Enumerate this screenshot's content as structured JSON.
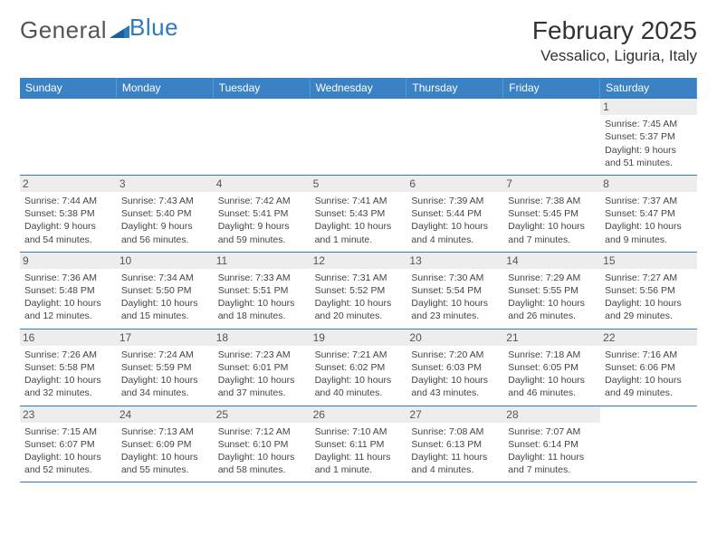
{
  "logo": {
    "part1": "General",
    "part2": "Blue"
  },
  "title": "February 2025",
  "location": "Vessalico, Liguria, Italy",
  "colors": {
    "header_bg": "#3b82c4",
    "header_text": "#ffffff",
    "border": "#2b7bbf",
    "daynum_bg": "#ededed",
    "text": "#444444",
    "logo_gray": "#555555",
    "logo_blue": "#2b7bbf"
  },
  "dow": [
    "Sunday",
    "Monday",
    "Tuesday",
    "Wednesday",
    "Thursday",
    "Friday",
    "Saturday"
  ],
  "weeks": [
    [
      null,
      null,
      null,
      null,
      null,
      null,
      {
        "n": "1",
        "sr": "Sunrise: 7:45 AM",
        "ss": "Sunset: 5:37 PM",
        "d1": "Daylight: 9 hours",
        "d2": "and 51 minutes."
      }
    ],
    [
      {
        "n": "2",
        "sr": "Sunrise: 7:44 AM",
        "ss": "Sunset: 5:38 PM",
        "d1": "Daylight: 9 hours",
        "d2": "and 54 minutes."
      },
      {
        "n": "3",
        "sr": "Sunrise: 7:43 AM",
        "ss": "Sunset: 5:40 PM",
        "d1": "Daylight: 9 hours",
        "d2": "and 56 minutes."
      },
      {
        "n": "4",
        "sr": "Sunrise: 7:42 AM",
        "ss": "Sunset: 5:41 PM",
        "d1": "Daylight: 9 hours",
        "d2": "and 59 minutes."
      },
      {
        "n": "5",
        "sr": "Sunrise: 7:41 AM",
        "ss": "Sunset: 5:43 PM",
        "d1": "Daylight: 10 hours",
        "d2": "and 1 minute."
      },
      {
        "n": "6",
        "sr": "Sunrise: 7:39 AM",
        "ss": "Sunset: 5:44 PM",
        "d1": "Daylight: 10 hours",
        "d2": "and 4 minutes."
      },
      {
        "n": "7",
        "sr": "Sunrise: 7:38 AM",
        "ss": "Sunset: 5:45 PM",
        "d1": "Daylight: 10 hours",
        "d2": "and 7 minutes."
      },
      {
        "n": "8",
        "sr": "Sunrise: 7:37 AM",
        "ss": "Sunset: 5:47 PM",
        "d1": "Daylight: 10 hours",
        "d2": "and 9 minutes."
      }
    ],
    [
      {
        "n": "9",
        "sr": "Sunrise: 7:36 AM",
        "ss": "Sunset: 5:48 PM",
        "d1": "Daylight: 10 hours",
        "d2": "and 12 minutes."
      },
      {
        "n": "10",
        "sr": "Sunrise: 7:34 AM",
        "ss": "Sunset: 5:50 PM",
        "d1": "Daylight: 10 hours",
        "d2": "and 15 minutes."
      },
      {
        "n": "11",
        "sr": "Sunrise: 7:33 AM",
        "ss": "Sunset: 5:51 PM",
        "d1": "Daylight: 10 hours",
        "d2": "and 18 minutes."
      },
      {
        "n": "12",
        "sr": "Sunrise: 7:31 AM",
        "ss": "Sunset: 5:52 PM",
        "d1": "Daylight: 10 hours",
        "d2": "and 20 minutes."
      },
      {
        "n": "13",
        "sr": "Sunrise: 7:30 AM",
        "ss": "Sunset: 5:54 PM",
        "d1": "Daylight: 10 hours",
        "d2": "and 23 minutes."
      },
      {
        "n": "14",
        "sr": "Sunrise: 7:29 AM",
        "ss": "Sunset: 5:55 PM",
        "d1": "Daylight: 10 hours",
        "d2": "and 26 minutes."
      },
      {
        "n": "15",
        "sr": "Sunrise: 7:27 AM",
        "ss": "Sunset: 5:56 PM",
        "d1": "Daylight: 10 hours",
        "d2": "and 29 minutes."
      }
    ],
    [
      {
        "n": "16",
        "sr": "Sunrise: 7:26 AM",
        "ss": "Sunset: 5:58 PM",
        "d1": "Daylight: 10 hours",
        "d2": "and 32 minutes."
      },
      {
        "n": "17",
        "sr": "Sunrise: 7:24 AM",
        "ss": "Sunset: 5:59 PM",
        "d1": "Daylight: 10 hours",
        "d2": "and 34 minutes."
      },
      {
        "n": "18",
        "sr": "Sunrise: 7:23 AM",
        "ss": "Sunset: 6:01 PM",
        "d1": "Daylight: 10 hours",
        "d2": "and 37 minutes."
      },
      {
        "n": "19",
        "sr": "Sunrise: 7:21 AM",
        "ss": "Sunset: 6:02 PM",
        "d1": "Daylight: 10 hours",
        "d2": "and 40 minutes."
      },
      {
        "n": "20",
        "sr": "Sunrise: 7:20 AM",
        "ss": "Sunset: 6:03 PM",
        "d1": "Daylight: 10 hours",
        "d2": "and 43 minutes."
      },
      {
        "n": "21",
        "sr": "Sunrise: 7:18 AM",
        "ss": "Sunset: 6:05 PM",
        "d1": "Daylight: 10 hours",
        "d2": "and 46 minutes."
      },
      {
        "n": "22",
        "sr": "Sunrise: 7:16 AM",
        "ss": "Sunset: 6:06 PM",
        "d1": "Daylight: 10 hours",
        "d2": "and 49 minutes."
      }
    ],
    [
      {
        "n": "23",
        "sr": "Sunrise: 7:15 AM",
        "ss": "Sunset: 6:07 PM",
        "d1": "Daylight: 10 hours",
        "d2": "and 52 minutes."
      },
      {
        "n": "24",
        "sr": "Sunrise: 7:13 AM",
        "ss": "Sunset: 6:09 PM",
        "d1": "Daylight: 10 hours",
        "d2": "and 55 minutes."
      },
      {
        "n": "25",
        "sr": "Sunrise: 7:12 AM",
        "ss": "Sunset: 6:10 PM",
        "d1": "Daylight: 10 hours",
        "d2": "and 58 minutes."
      },
      {
        "n": "26",
        "sr": "Sunrise: 7:10 AM",
        "ss": "Sunset: 6:11 PM",
        "d1": "Daylight: 11 hours",
        "d2": "and 1 minute."
      },
      {
        "n": "27",
        "sr": "Sunrise: 7:08 AM",
        "ss": "Sunset: 6:13 PM",
        "d1": "Daylight: 11 hours",
        "d2": "and 4 minutes."
      },
      {
        "n": "28",
        "sr": "Sunrise: 7:07 AM",
        "ss": "Sunset: 6:14 PM",
        "d1": "Daylight: 11 hours",
        "d2": "and 7 minutes."
      },
      null
    ]
  ]
}
